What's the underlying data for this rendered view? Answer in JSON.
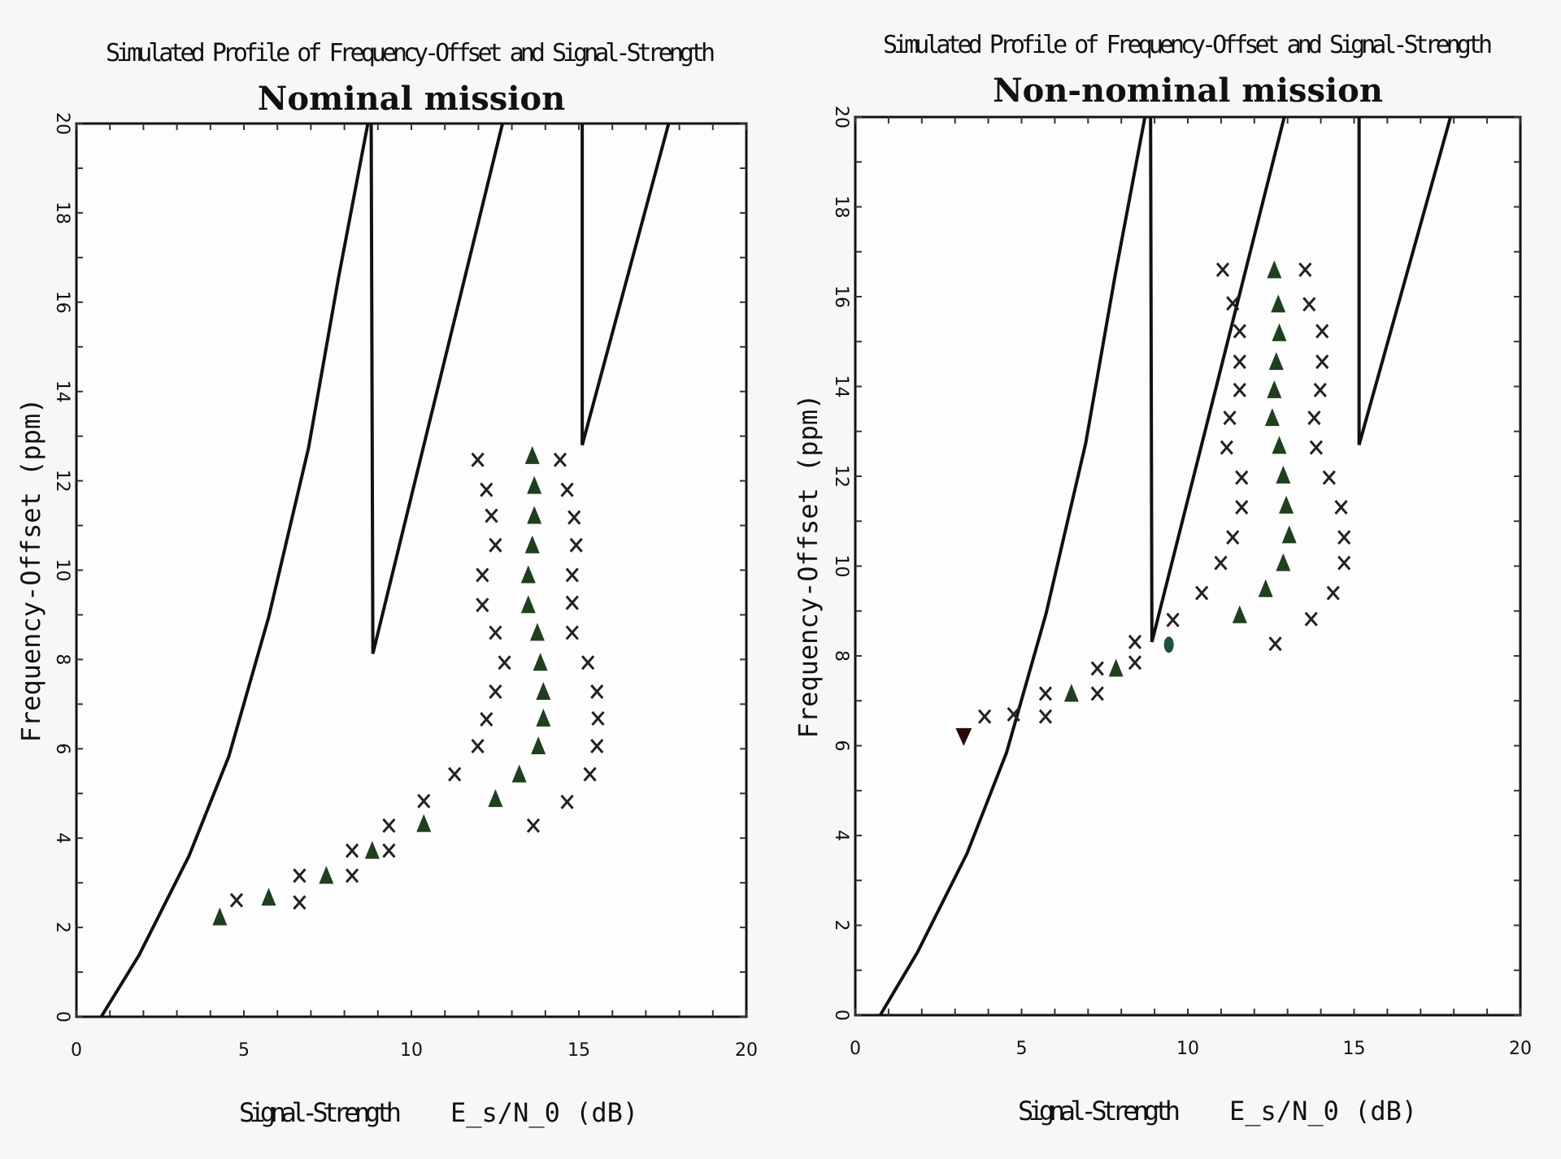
{
  "chart_data": [
    {
      "type": "scatter",
      "suptitle": "Simulated Profile of Frequency-Offset and Signal-Strength",
      "title": "Nominal mission",
      "xlabel": "Signal-Strength",
      "xlabel_unit": "E_s/N_0 (dB)",
      "ylabel": "Frequency-Offset (ppm)",
      "xlim": [
        0,
        20
      ],
      "ylim": [
        0,
        20
      ],
      "xticks": [
        "0",
        "5",
        "10",
        "15",
        "20"
      ],
      "yticks": [
        "0",
        "2",
        "4",
        "6",
        "8",
        "10",
        "12",
        "14",
        "16",
        "18",
        "20"
      ],
      "grid": false,
      "lines": [
        {
          "points": [
            [
              0.74,
              0
            ],
            [
              1.87,
              1.38
            ],
            [
              3.36,
              3.6
            ],
            [
              4.55,
              5.83
            ],
            [
              5.74,
              8.95
            ],
            [
              6.93,
              12.74
            ],
            [
              7.82,
              16.53
            ],
            [
              8.7,
              20
            ]
          ]
        },
        {
          "points": [
            [
              8.8,
              20
            ],
            [
              8.85,
              8.13
            ],
            [
              12.72,
              20
            ]
          ]
        },
        {
          "points": [
            [
              15.1,
              20
            ],
            [
              15.1,
              12.8
            ],
            [
              17.68,
              20
            ]
          ]
        }
      ],
      "series": [
        {
          "marker": "triangle",
          "color": "#1f3f1f",
          "points": [
            [
              4.28,
              2.23
            ],
            [
              5.74,
              2.67
            ],
            [
              7.46,
              3.16
            ],
            [
              8.83,
              3.72
            ],
            [
              10.37,
              4.32
            ],
            [
              12.51,
              4.88
            ],
            [
              13.22,
              5.43
            ],
            [
              13.79,
              6.06
            ],
            [
              13.94,
              6.68
            ],
            [
              13.94,
              7.28
            ],
            [
              13.85,
              7.93
            ],
            [
              13.76,
              8.6
            ],
            [
              13.49,
              9.22
            ],
            [
              13.49,
              9.89
            ],
            [
              13.61,
              10.56
            ],
            [
              13.67,
              11.22
            ],
            [
              13.67,
              11.89
            ],
            [
              13.61,
              12.56
            ]
          ]
        },
        {
          "marker": "x",
          "color": "#222222",
          "points": [
            [
              4.78,
              2.61
            ],
            [
              6.66,
              2.56
            ],
            [
              6.66,
              3.16
            ],
            [
              8.23,
              3.16
            ],
            [
              8.23,
              3.72
            ],
            [
              9.33,
              3.72
            ],
            [
              9.33,
              4.28
            ],
            [
              10.37,
              4.83
            ],
            [
              11.29,
              5.43
            ],
            [
              11.98,
              6.06
            ],
            [
              12.24,
              6.66
            ],
            [
              12.51,
              7.28
            ],
            [
              12.78,
              7.93
            ],
            [
              12.51,
              8.6
            ],
            [
              12.12,
              9.22
            ],
            [
              12.12,
              9.89
            ],
            [
              12.51,
              10.56
            ],
            [
              12.39,
              11.22
            ],
            [
              12.24,
              11.8
            ],
            [
              11.98,
              12.47
            ],
            [
              14.44,
              12.47
            ],
            [
              14.65,
              11.8
            ],
            [
              14.86,
              11.18
            ],
            [
              14.92,
              10.56
            ],
            [
              14.8,
              9.89
            ],
            [
              14.8,
              9.27
            ],
            [
              14.8,
              8.6
            ],
            [
              15.27,
              7.93
            ],
            [
              15.54,
              7.28
            ],
            [
              15.57,
              6.68
            ],
            [
              15.54,
              6.06
            ],
            [
              15.33,
              5.43
            ],
            [
              14.65,
              4.81
            ],
            [
              13.64,
              4.28
            ]
          ]
        }
      ]
    },
    {
      "type": "scatter",
      "suptitle": "Simulated Profile of Frequency-Offset and Signal-Strength",
      "title": "Non-nominal mission",
      "xlabel": "Signal-Strength",
      "xlabel_unit": "E_s/N_0 (dB)",
      "ylabel": "Frequency-Offset (ppm)",
      "xlim": [
        0,
        20
      ],
      "ylim": [
        0,
        20
      ],
      "xticks": [
        "0",
        "5",
        "10",
        "15",
        "20"
      ],
      "yticks": [
        "0",
        "2",
        "4",
        "6",
        "8",
        "10",
        "12",
        "14",
        "16",
        "18",
        "20"
      ],
      "grid": false,
      "lines": [
        {
          "points": [
            [
              0.75,
              0
            ],
            [
              1.87,
              1.4
            ],
            [
              3.36,
              3.6
            ],
            [
              4.55,
              5.85
            ],
            [
              5.74,
              8.95
            ],
            [
              6.93,
              12.74
            ],
            [
              7.82,
              16.5
            ],
            [
              8.71,
              20
            ]
          ]
        },
        {
          "points": [
            [
              8.88,
              20
            ],
            [
              8.92,
              8.31
            ],
            [
              12.9,
              20
            ]
          ]
        },
        {
          "points": [
            [
              15.15,
              20
            ],
            [
              15.15,
              12.7
            ],
            [
              17.9,
              20
            ]
          ]
        }
      ],
      "series": [
        {
          "marker": "triangle-down",
          "color": "#2a0a0a",
          "points": [
            [
              3.26,
              6.21
            ]
          ]
        },
        {
          "marker": "circle",
          "color": "#1f4f3f",
          "points": [
            [
              9.43,
              8.25
            ]
          ]
        },
        {
          "marker": "triangle",
          "color": "#1f3f1f",
          "points": [
            [
              6.5,
              7.16
            ],
            [
              7.84,
              7.72
            ],
            [
              11.56,
              8.91
            ],
            [
              12.34,
              9.49
            ],
            [
              12.87,
              10.07
            ],
            [
              13.05,
              10.69
            ],
            [
              12.96,
              11.35
            ],
            [
              12.87,
              12.02
            ],
            [
              12.75,
              12.68
            ],
            [
              12.54,
              13.3
            ],
            [
              12.6,
              13.92
            ],
            [
              12.66,
              14.55
            ],
            [
              12.75,
              15.19
            ],
            [
              12.72,
              15.83
            ],
            [
              12.6,
              16.59
            ]
          ]
        },
        {
          "marker": "x",
          "color": "#222222",
          "points": [
            [
              3.89,
              6.65
            ],
            [
              4.76,
              6.7
            ],
            [
              5.72,
              7.16
            ],
            [
              5.72,
              6.65
            ],
            [
              7.28,
              7.16
            ],
            [
              7.28,
              7.72
            ],
            [
              8.41,
              7.85
            ],
            [
              8.41,
              8.31
            ],
            [
              9.55,
              8.8
            ],
            [
              10.42,
              9.4
            ],
            [
              10.99,
              10.07
            ],
            [
              11.35,
              10.64
            ],
            [
              11.62,
              11.31
            ],
            [
              11.62,
              11.97
            ],
            [
              11.17,
              12.64
            ],
            [
              11.26,
              13.3
            ],
            [
              11.56,
              13.92
            ],
            [
              11.56,
              14.55
            ],
            [
              11.56,
              15.23
            ],
            [
              11.35,
              15.85
            ],
            [
              11.05,
              16.6
            ],
            [
              13.53,
              16.6
            ],
            [
              13.65,
              15.83
            ],
            [
              14.04,
              15.23
            ],
            [
              14.04,
              14.55
            ],
            [
              13.98,
              13.92
            ],
            [
              13.8,
              13.3
            ],
            [
              13.86,
              12.64
            ],
            [
              14.25,
              11.97
            ],
            [
              14.61,
              11.31
            ],
            [
              14.7,
              10.64
            ],
            [
              14.7,
              10.07
            ],
            [
              14.37,
              9.4
            ],
            [
              13.71,
              8.82
            ],
            [
              12.63,
              8.27
            ]
          ]
        }
      ]
    }
  ]
}
